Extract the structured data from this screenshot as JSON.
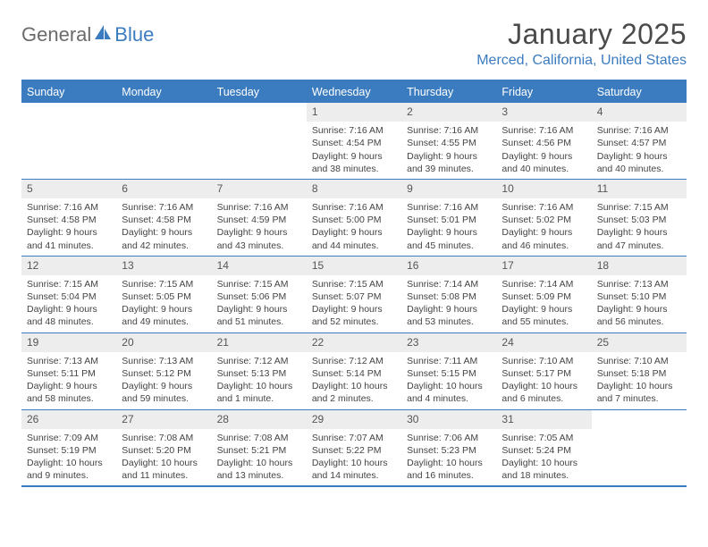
{
  "logo": {
    "text1": "General",
    "text2": "Blue"
  },
  "title": "January 2025",
  "location": "Merced, California, United States",
  "colors": {
    "accent": "#3b7bbf",
    "header_bg": "#3b7bbf",
    "daynum_bg": "#ededed",
    "text": "#444444"
  },
  "day_names": [
    "Sunday",
    "Monday",
    "Tuesday",
    "Wednesday",
    "Thursday",
    "Friday",
    "Saturday"
  ],
  "weeks": [
    [
      null,
      null,
      null,
      {
        "d": "1",
        "sr": "7:16 AM",
        "ss": "4:54 PM",
        "dl": "9 hours and 38 minutes."
      },
      {
        "d": "2",
        "sr": "7:16 AM",
        "ss": "4:55 PM",
        "dl": "9 hours and 39 minutes."
      },
      {
        "d": "3",
        "sr": "7:16 AM",
        "ss": "4:56 PM",
        "dl": "9 hours and 40 minutes."
      },
      {
        "d": "4",
        "sr": "7:16 AM",
        "ss": "4:57 PM",
        "dl": "9 hours and 40 minutes."
      }
    ],
    [
      {
        "d": "5",
        "sr": "7:16 AM",
        "ss": "4:58 PM",
        "dl": "9 hours and 41 minutes."
      },
      {
        "d": "6",
        "sr": "7:16 AM",
        "ss": "4:58 PM",
        "dl": "9 hours and 42 minutes."
      },
      {
        "d": "7",
        "sr": "7:16 AM",
        "ss": "4:59 PM",
        "dl": "9 hours and 43 minutes."
      },
      {
        "d": "8",
        "sr": "7:16 AM",
        "ss": "5:00 PM",
        "dl": "9 hours and 44 minutes."
      },
      {
        "d": "9",
        "sr": "7:16 AM",
        "ss": "5:01 PM",
        "dl": "9 hours and 45 minutes."
      },
      {
        "d": "10",
        "sr": "7:16 AM",
        "ss": "5:02 PM",
        "dl": "9 hours and 46 minutes."
      },
      {
        "d": "11",
        "sr": "7:15 AM",
        "ss": "5:03 PM",
        "dl": "9 hours and 47 minutes."
      }
    ],
    [
      {
        "d": "12",
        "sr": "7:15 AM",
        "ss": "5:04 PM",
        "dl": "9 hours and 48 minutes."
      },
      {
        "d": "13",
        "sr": "7:15 AM",
        "ss": "5:05 PM",
        "dl": "9 hours and 49 minutes."
      },
      {
        "d": "14",
        "sr": "7:15 AM",
        "ss": "5:06 PM",
        "dl": "9 hours and 51 minutes."
      },
      {
        "d": "15",
        "sr": "7:15 AM",
        "ss": "5:07 PM",
        "dl": "9 hours and 52 minutes."
      },
      {
        "d": "16",
        "sr": "7:14 AM",
        "ss": "5:08 PM",
        "dl": "9 hours and 53 minutes."
      },
      {
        "d": "17",
        "sr": "7:14 AM",
        "ss": "5:09 PM",
        "dl": "9 hours and 55 minutes."
      },
      {
        "d": "18",
        "sr": "7:13 AM",
        "ss": "5:10 PM",
        "dl": "9 hours and 56 minutes."
      }
    ],
    [
      {
        "d": "19",
        "sr": "7:13 AM",
        "ss": "5:11 PM",
        "dl": "9 hours and 58 minutes."
      },
      {
        "d": "20",
        "sr": "7:13 AM",
        "ss": "5:12 PM",
        "dl": "9 hours and 59 minutes."
      },
      {
        "d": "21",
        "sr": "7:12 AM",
        "ss": "5:13 PM",
        "dl": "10 hours and 1 minute."
      },
      {
        "d": "22",
        "sr": "7:12 AM",
        "ss": "5:14 PM",
        "dl": "10 hours and 2 minutes."
      },
      {
        "d": "23",
        "sr": "7:11 AM",
        "ss": "5:15 PM",
        "dl": "10 hours and 4 minutes."
      },
      {
        "d": "24",
        "sr": "7:10 AM",
        "ss": "5:17 PM",
        "dl": "10 hours and 6 minutes."
      },
      {
        "d": "25",
        "sr": "7:10 AM",
        "ss": "5:18 PM",
        "dl": "10 hours and 7 minutes."
      }
    ],
    [
      {
        "d": "26",
        "sr": "7:09 AM",
        "ss": "5:19 PM",
        "dl": "10 hours and 9 minutes."
      },
      {
        "d": "27",
        "sr": "7:08 AM",
        "ss": "5:20 PM",
        "dl": "10 hours and 11 minutes."
      },
      {
        "d": "28",
        "sr": "7:08 AM",
        "ss": "5:21 PM",
        "dl": "10 hours and 13 minutes."
      },
      {
        "d": "29",
        "sr": "7:07 AM",
        "ss": "5:22 PM",
        "dl": "10 hours and 14 minutes."
      },
      {
        "d": "30",
        "sr": "7:06 AM",
        "ss": "5:23 PM",
        "dl": "10 hours and 16 minutes."
      },
      {
        "d": "31",
        "sr": "7:05 AM",
        "ss": "5:24 PM",
        "dl": "10 hours and 18 minutes."
      },
      null
    ]
  ],
  "labels": {
    "sunrise": "Sunrise:",
    "sunset": "Sunset:",
    "daylight": "Daylight:"
  }
}
